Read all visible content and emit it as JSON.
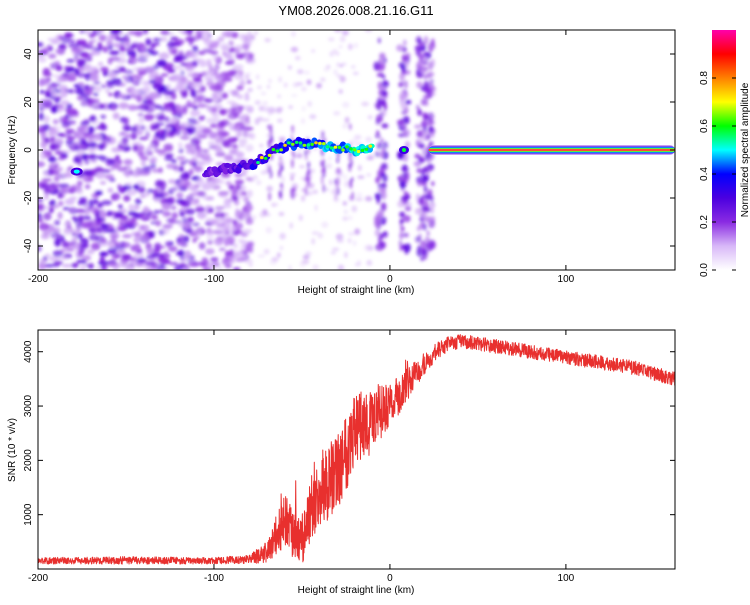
{
  "title": "YM08.2026.008.21.16.G11",
  "colors": {
    "snr_line": "#e8302e",
    "colormap": [
      "#ffffff",
      "#d8b8f8",
      "#8a2be2",
      "#4b00e0",
      "#0000ff",
      "#00ffff",
      "#00ff00",
      "#ffff00",
      "#ff8000",
      "#ff0000",
      "#ff00aa"
    ]
  },
  "chart_data": [
    {
      "type": "heatmap",
      "title": "YM08.2026.008.21.16.G11",
      "xlabel": "Height of straight line (km)",
      "ylabel": "Frequency (Hz)",
      "xlim": [
        -200,
        162
      ],
      "ylim": [
        -50,
        50
      ],
      "x_ticks": [
        -200,
        -100,
        0,
        100
      ],
      "x_tick_labels": [
        "-200",
        "-100",
        "0",
        "100"
      ],
      "y_ticks": [
        -40,
        -20,
        0,
        20,
        40
      ],
      "y_tick_labels": [
        "-40",
        "-20",
        "0",
        "20",
        "40"
      ],
      "colorbar": {
        "label": "Normalized spectral amplitude",
        "range": [
          0,
          1
        ],
        "ticks": [
          0.0,
          0.2,
          0.4,
          0.6,
          0.8
        ],
        "tick_labels": [
          "0.0",
          "0.2",
          "0.4",
          "0.6",
          "0.8"
        ]
      },
      "features": {
        "noise_region_km": [
          -200,
          -85
        ],
        "ridge": [
          [
            -105,
            -9
          ],
          [
            -95,
            -8
          ],
          [
            -85,
            -7
          ],
          [
            -75,
            -5
          ],
          [
            -65,
            0
          ],
          [
            -58,
            2
          ],
          [
            -50,
            3
          ],
          [
            -40,
            2
          ],
          [
            -30,
            1
          ],
          [
            -20,
            0
          ],
          [
            -10,
            1
          ]
        ],
        "isolated_blob": {
          "x": -178,
          "y": -9
        },
        "scattered_columns_km": [
          -5,
          8,
          18,
          22
        ],
        "carrier_line": {
          "x_start": 22,
          "x_end": 162,
          "y": 0,
          "amplitude": 0.95
        }
      }
    },
    {
      "type": "line",
      "xlabel": "Height of straight line (km)",
      "ylabel": "SNR (10 * v/v)",
      "xlim": [
        -200,
        162
      ],
      "ylim": [
        0,
        4400
      ],
      "x_ticks": [
        -200,
        -100,
        0,
        100
      ],
      "x_tick_labels": [
        "-200",
        "-100",
        "0",
        "100"
      ],
      "y_ticks": [
        1000,
        2000,
        3000,
        4000
      ],
      "y_tick_labels": [
        "1000",
        "2000",
        "3000",
        "4000"
      ],
      "series": [
        {
          "name": "SNR",
          "x": [
            -200,
            -150,
            -100,
            -80,
            -70,
            -60,
            -55,
            -50,
            -45,
            -40,
            -35,
            -30,
            -25,
            -20,
            -15,
            -10,
            -5,
            0,
            10,
            20,
            30,
            40,
            50,
            60,
            80,
            100,
            120,
            140,
            150,
            162
          ],
          "y": [
            150,
            160,
            150,
            180,
            300,
            900,
            600,
            500,
            1100,
            1300,
            1600,
            1800,
            2200,
            2600,
            2600,
            2800,
            2900,
            3000,
            3400,
            3800,
            4100,
            4200,
            4150,
            4100,
            4000,
            3900,
            3800,
            3700,
            3600,
            3500
          ],
          "noise_amplitude": [
            60,
            70,
            60,
            80,
            200,
            500,
            500,
            500,
            600,
            600,
            700,
            700,
            800,
            700,
            700,
            600,
            500,
            400,
            300,
            200,
            150,
            130,
            130,
            130,
            130,
            130,
            130,
            130,
            130,
            130
          ]
        }
      ]
    }
  ]
}
